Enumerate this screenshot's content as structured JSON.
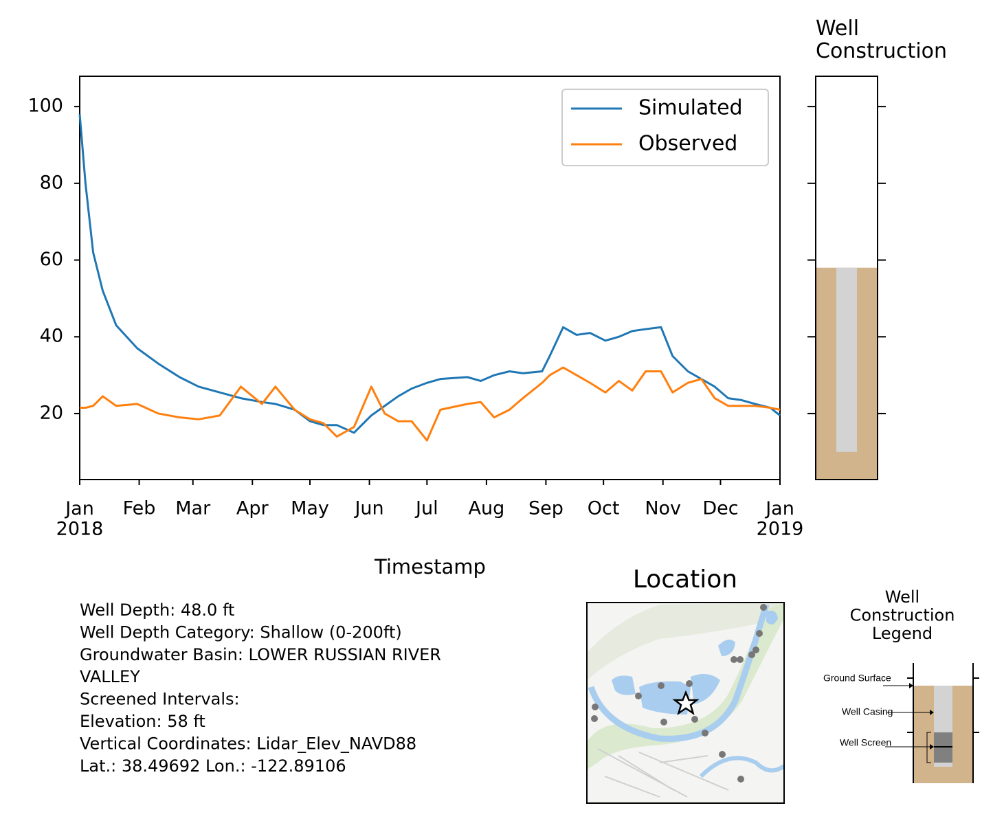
{
  "chart_data": [
    {
      "type": "line",
      "x_label": "Timestamp",
      "x": [
        0,
        3,
        7,
        12,
        19,
        30,
        41,
        52,
        62,
        73,
        84,
        95,
        102,
        112,
        120,
        127,
        134,
        143,
        152,
        159,
        166,
        173,
        181,
        188,
        202,
        209,
        216,
        224,
        231,
        241,
        245,
        252,
        259,
        266,
        274,
        281,
        288,
        295,
        303,
        309,
        317,
        324,
        331,
        338,
        345,
        352,
        360,
        365
      ],
      "series": [
        {
          "name": "Simulated",
          "color": "#1f77b4",
          "values": [
            98,
            80,
            62,
            52,
            43,
            37,
            33,
            29.5,
            27,
            25.5,
            24,
            23,
            22.5,
            21,
            18,
            17,
            17,
            15,
            19.5,
            22,
            24.5,
            26.5,
            28,
            29,
            29.5,
            28.5,
            30,
            31,
            30.5,
            31,
            35,
            42.5,
            40.5,
            41,
            39,
            40,
            41.5,
            42,
            42.5,
            35,
            31,
            29,
            27,
            24,
            23.5,
            22.5,
            21.5,
            19.5
          ]
        },
        {
          "name": "Observed",
          "color": "#ff7f0e",
          "values": [
            21.5,
            21.5,
            22,
            24.5,
            22,
            22.5,
            20,
            19,
            18.5,
            19.5,
            27,
            22.5,
            27,
            21,
            18.5,
            17.5,
            14,
            16.5,
            27,
            20,
            18,
            18,
            13,
            21,
            22.5,
            23,
            19,
            21,
            24,
            28,
            30,
            32,
            30,
            28,
            25.5,
            28.5,
            26,
            31,
            31,
            25.5,
            28,
            29,
            24,
            22,
            22,
            22,
            21.5,
            21
          ]
        }
      ],
      "xlim": [
        0,
        365
      ],
      "xticks": [
        {
          "value": 0,
          "label": "Jan\n2018"
        },
        {
          "value": 31,
          "label": "Feb"
        },
        {
          "value": 59,
          "label": "Mar"
        },
        {
          "value": 90,
          "label": "Apr"
        },
        {
          "value": 120,
          "label": "May"
        },
        {
          "value": 151,
          "label": "Jun"
        },
        {
          "value": 181,
          "label": "Jul"
        },
        {
          "value": 212,
          "label": "Aug"
        },
        {
          "value": 243,
          "label": "Sep"
        },
        {
          "value": 273,
          "label": "Oct"
        },
        {
          "value": 304,
          "label": "Nov"
        },
        {
          "value": 334,
          "label": "Dec"
        },
        {
          "value": 365,
          "label": "Jan\n2019"
        }
      ],
      "ylim": [
        2.8,
        107.9
      ],
      "yticks": [
        20,
        40,
        60,
        80,
        100
      ],
      "legend": "upper right"
    },
    {
      "type": "well",
      "title": "Well\nConstruction",
      "ground_surface": 58,
      "casing_bottom": 10,
      "ground_color": "#d2b48c",
      "casing_color": "#d3d3d3",
      "ylim": [
        2.8,
        107.9
      ],
      "yticks": [
        20,
        40,
        60,
        80,
        100
      ]
    }
  ],
  "info": [
    "Well Depth: 48.0 ft",
    "Well Depth Category: Shallow (0-200ft)",
    "Groundwater Basin: LOWER RUSSIAN RIVER",
    "VALLEY",
    "Screened Intervals:",
    "Elevation: 58 ft",
    "Vertical Coordinates: Lidar_Elev_NAVD88",
    "Lat.: 38.49692 Lon.: -122.89106"
  ],
  "location": {
    "title": "Location"
  },
  "legend_diagram": {
    "title": "Well\nConstruction\nLegend",
    "labels": [
      "Ground Surface",
      "Well Casing",
      "Well Screen"
    ]
  }
}
